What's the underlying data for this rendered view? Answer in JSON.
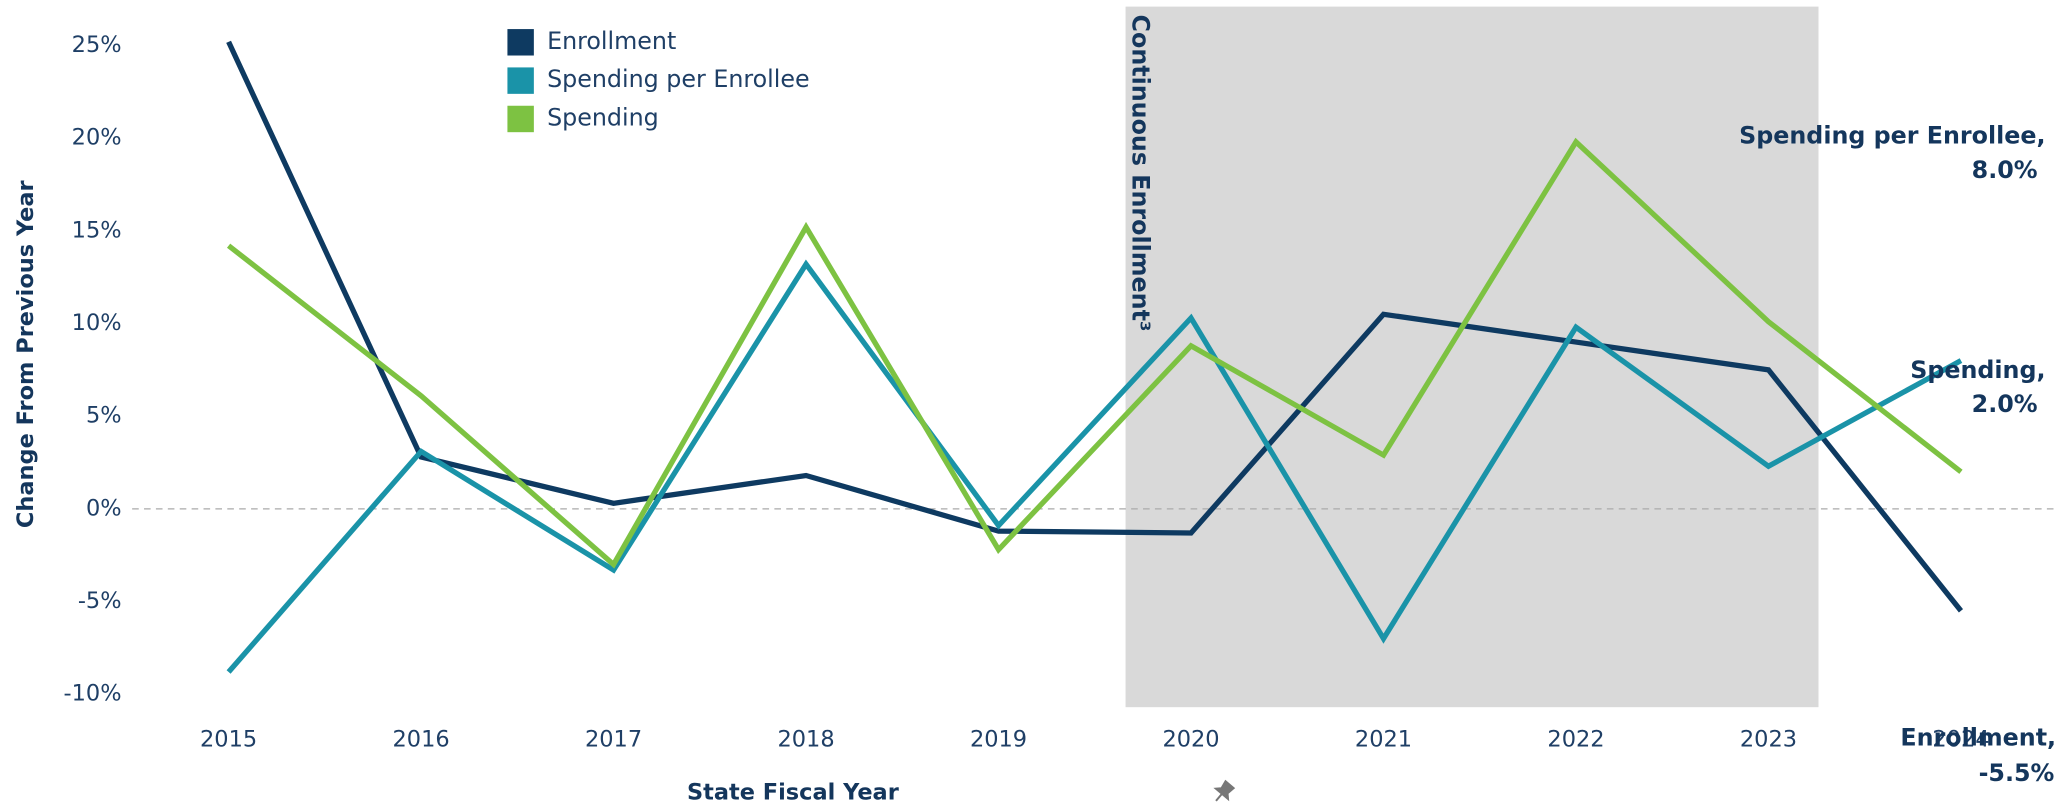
{
  "chart_data": {
    "type": "line",
    "x": [
      2015,
      2016,
      2017,
      2018,
      2019,
      2020,
      2021,
      2022,
      2023,
      2024
    ],
    "xlim": [
      2014.4,
      2024.5
    ],
    "xticks": [
      2015,
      2016,
      2017,
      2018,
      2019,
      2020,
      2021,
      2022,
      2023,
      2024
    ],
    "ylim": [
      -10.7,
      27.1
    ],
    "yticks": [
      {
        "value": -10,
        "label": "-10%"
      },
      {
        "value": -5,
        "label": "-5%"
      },
      {
        "value": 0,
        "label": "0%"
      },
      {
        "value": 5,
        "label": "5%"
      },
      {
        "value": 10,
        "label": "10%"
      },
      {
        "value": 15,
        "label": "15%"
      },
      {
        "value": 20,
        "label": "20%"
      },
      {
        "value": 25,
        "label": "25%"
      }
    ],
    "y_label": "Change From Previous Year",
    "x_label": "State Fiscal Year",
    "legend": "upper left",
    "shade": {
      "x": [
        2019.66,
        2023.26
      ],
      "label": "Continuous Enrollment³",
      "color": "#d9d9d9"
    },
    "series": [
      {
        "name": "Enrollment",
        "color": "#0e3a61",
        "values": [
          25.2,
          2.8,
          0.3,
          1.8,
          -1.2,
          -1.3,
          10.5,
          9.0,
          7.5,
          -5.5
        ],
        "end_label": [
          "Enrollment,",
          "-5.5%"
        ]
      },
      {
        "name": "Spending per Enrollee",
        "color": "#1a93a8",
        "values": [
          -8.8,
          3.1,
          -3.3,
          13.2,
          -0.9,
          10.3,
          -7.0,
          9.8,
          2.3,
          8.0
        ],
        "end_label": [
          "Spending per Enrollee,",
          "8.0%"
        ]
      },
      {
        "name": "Spending",
        "color": "#7dc242",
        "values": [
          14.2,
          6.1,
          -3.0,
          15.2,
          -2.2,
          8.8,
          2.9,
          19.8,
          10.1,
          2.0
        ],
        "end_label": [
          "Spending,",
          "2.0%"
        ]
      }
    ]
  }
}
